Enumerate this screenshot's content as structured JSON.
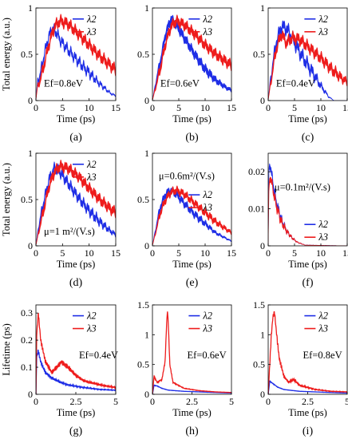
{
  "figure": {
    "row_ylabels": [
      "Total energy (a.u.)",
      "Total energy (a.u.)",
      "Lifetime (ps)"
    ],
    "colors": {
      "lambda2": "#1f2ee6",
      "lambda3": "#ee1c1c"
    }
  },
  "chart_data": [
    {
      "panel": "(a)",
      "type": "line",
      "xlabel": "Time (ps)",
      "annotation": "Ef=0.8eV",
      "xlim": [
        0,
        15
      ],
      "ylim": [
        0,
        1
      ],
      "xticks": [
        0,
        5,
        10,
        15
      ],
      "yticks": [
        0,
        0.5,
        1
      ],
      "xtick_labels": [
        "0",
        "5",
        "10",
        "15"
      ],
      "ytick_labels": [
        "0",
        "0.5",
        "1"
      ],
      "legend": "top-right",
      "grid": false,
      "series": [
        {
          "name": "λ2",
          "band": 0.05,
          "ripple": 0.035,
          "ripple_period": 0.8,
          "x": [
            0,
            0.3,
            0.8,
            1.5,
            2.2,
            3,
            3.8,
            4.6,
            6,
            8,
            10,
            12,
            14,
            15
          ],
          "y": [
            0,
            0.2,
            0.28,
            0.48,
            0.65,
            0.78,
            0.74,
            0.65,
            0.55,
            0.42,
            0.3,
            0.18,
            0.08,
            0.05
          ]
        },
        {
          "name": "λ3",
          "band": 0.07,
          "ripple": 0.03,
          "ripple_period": 0.9,
          "x": [
            0,
            0.3,
            0.8,
            1.5,
            2.5,
            3.5,
            4.5,
            6,
            8,
            10,
            12,
            14,
            15
          ],
          "y": [
            0,
            0.15,
            0.22,
            0.38,
            0.62,
            0.8,
            0.86,
            0.83,
            0.72,
            0.6,
            0.48,
            0.38,
            0.33
          ]
        }
      ]
    },
    {
      "panel": "(b)",
      "type": "line",
      "xlabel": "Time (ps)",
      "annotation": "Ef=0.6eV",
      "xlim": [
        0,
        15
      ],
      "ylim": [
        0,
        1
      ],
      "xticks": [
        0,
        5,
        10,
        15
      ],
      "yticks": [
        0,
        0.5,
        1
      ],
      "xtick_labels": [
        "0",
        "5",
        "10",
        "15"
      ],
      "ytick_labels": [
        "0",
        "0.5",
        "1"
      ],
      "legend": "top-right",
      "grid": false,
      "series": [
        {
          "name": "λ2",
          "band": 0.07,
          "ripple": 0.02,
          "ripple_period": 0.9,
          "x": [
            0,
            0.5,
            1.5,
            2.5,
            3.5,
            4.5,
            6,
            8,
            10,
            12,
            14,
            15
          ],
          "y": [
            0,
            0.15,
            0.42,
            0.72,
            0.88,
            0.82,
            0.68,
            0.5,
            0.34,
            0.22,
            0.14,
            0.11
          ]
        },
        {
          "name": "λ3",
          "band": 0.07,
          "ripple": 0.025,
          "ripple_period": 0.9,
          "x": [
            0,
            0.5,
            1.5,
            2.5,
            3.5,
            4.5,
            6,
            8,
            10,
            12,
            14,
            15
          ],
          "y": [
            0,
            0.12,
            0.35,
            0.62,
            0.8,
            0.86,
            0.82,
            0.72,
            0.6,
            0.5,
            0.42,
            0.38
          ]
        }
      ]
    },
    {
      "panel": "(c)",
      "type": "line",
      "xlabel": "Time (ps)",
      "annotation": "Ef=0.4eV",
      "xlim": [
        0,
        15
      ],
      "ylim": [
        0,
        1
      ],
      "xticks": [
        0,
        5,
        10,
        15
      ],
      "yticks": [
        0,
        0.5,
        1
      ],
      "xtick_labels": [
        "0",
        "5",
        "10",
        "15"
      ],
      "ytick_labels": [
        "0",
        "0.5",
        "1"
      ],
      "legend": "top-right",
      "grid": false,
      "series": [
        {
          "name": "λ2",
          "band": 0.07,
          "ripple": 0.04,
          "ripple_period": 0.9,
          "x": [
            0,
            0.5,
            1.5,
            2.5,
            3.5,
            4.5,
            6,
            8,
            10,
            11.5,
            12.5
          ],
          "y": [
            0,
            0.25,
            0.62,
            0.8,
            0.78,
            0.68,
            0.52,
            0.34,
            0.16,
            0.04,
            0
          ]
        },
        {
          "name": "λ3",
          "band": 0.07,
          "ripple": 0.03,
          "ripple_period": 0.9,
          "x": [
            0,
            0.5,
            1.5,
            2.5,
            3.5,
            4.5,
            6,
            8,
            10,
            12,
            14,
            15
          ],
          "y": [
            0,
            0.2,
            0.55,
            0.72,
            0.62,
            0.68,
            0.66,
            0.56,
            0.46,
            0.34,
            0.24,
            0.2
          ]
        }
      ]
    },
    {
      "panel": "(d)",
      "type": "line",
      "xlabel": "Time (ps)",
      "annotation": "μ=1 m²/(V.s)",
      "xlim": [
        0,
        15
      ],
      "ylim": [
        0,
        1
      ],
      "xticks": [
        0,
        5,
        10,
        15
      ],
      "yticks": [
        0,
        0.5,
        1
      ],
      "xtick_labels": [
        "0",
        "5",
        "10",
        "15"
      ],
      "ytick_labels": [
        "0",
        "0.5",
        "1"
      ],
      "legend": "top-right",
      "grid": false,
      "series": [
        {
          "name": "λ2",
          "band": 0.06,
          "ripple": 0.03,
          "ripple_period": 0.8,
          "x": [
            0,
            0.5,
            1.5,
            2.5,
            3.5,
            4.5,
            6,
            8,
            10,
            12,
            14,
            15
          ],
          "y": [
            0,
            0.2,
            0.48,
            0.72,
            0.84,
            0.8,
            0.68,
            0.52,
            0.38,
            0.26,
            0.16,
            0.12
          ]
        },
        {
          "name": "λ3",
          "band": 0.07,
          "ripple": 0.025,
          "ripple_period": 0.9,
          "x": [
            0,
            0.5,
            1.5,
            2.5,
            3.5,
            4.5,
            6,
            8,
            10,
            12,
            14,
            15
          ],
          "y": [
            0,
            0.15,
            0.4,
            0.65,
            0.8,
            0.86,
            0.84,
            0.75,
            0.62,
            0.5,
            0.4,
            0.36
          ]
        }
      ]
    },
    {
      "panel": "(e)",
      "type": "line",
      "xlabel": "Time (ps)",
      "annotation": "μ=0.6m²/(V.s)",
      "xlim": [
        0,
        15
      ],
      "ylim": [
        0,
        1
      ],
      "xticks": [
        0,
        5,
        10,
        15
      ],
      "yticks": [
        0,
        0.5,
        1
      ],
      "xtick_labels": [
        "0",
        "5",
        "10",
        "15"
      ],
      "ytick_labels": [
        "0",
        "0.5",
        "1"
      ],
      "legend": "center-right",
      "grid": false,
      "series": [
        {
          "name": "λ2",
          "band": 0.05,
          "ripple": 0.02,
          "ripple_period": 0.9,
          "x": [
            0,
            0.5,
            1.5,
            2.5,
            3.5,
            4.5,
            6,
            8,
            10,
            12,
            14,
            15
          ],
          "y": [
            0,
            0.15,
            0.42,
            0.56,
            0.6,
            0.56,
            0.46,
            0.34,
            0.24,
            0.14,
            0.08,
            0.05
          ]
        },
        {
          "name": "λ3",
          "band": 0.05,
          "ripple": 0.02,
          "ripple_period": 0.9,
          "x": [
            0,
            0.5,
            1.5,
            2.5,
            3.5,
            4.5,
            6,
            8,
            10,
            12,
            14,
            15
          ],
          "y": [
            0,
            0.12,
            0.36,
            0.5,
            0.58,
            0.6,
            0.56,
            0.46,
            0.36,
            0.26,
            0.18,
            0.14
          ]
        }
      ]
    },
    {
      "panel": "(f)",
      "type": "line",
      "xlabel": "Time (ps)",
      "annotation": "μ=0.1m²/(V.s)",
      "xlim": [
        0,
        15
      ],
      "ylim": [
        0,
        0.025
      ],
      "xticks": [
        0,
        5,
        10,
        15
      ],
      "yticks": [
        0,
        0.01,
        0.02
      ],
      "xtick_labels": [
        "0",
        "5",
        "10",
        "15"
      ],
      "ytick_labels": [
        "0",
        "0.01",
        "0.02"
      ],
      "legend": "bottom-right",
      "grid": false,
      "series": [
        {
          "name": "λ2",
          "band": 0.0012,
          "ripple": 0.0008,
          "ripple_period": 0.6,
          "x": [
            0,
            0.15,
            0.4,
            0.8,
            1.5,
            2.5,
            3.5,
            4.5,
            5.5,
            7,
            15
          ],
          "y": [
            0,
            0.02,
            0.022,
            0.018,
            0.012,
            0.007,
            0.004,
            0.0022,
            0.001,
            0.0002,
            0
          ]
        },
        {
          "name": "λ3",
          "band": 0.0012,
          "ripple": 0.0008,
          "ripple_period": 0.6,
          "x": [
            0,
            0.15,
            0.4,
            0.8,
            1.5,
            2.5,
            3.5,
            4.5,
            5.5,
            7,
            15
          ],
          "y": [
            0,
            0.015,
            0.019,
            0.016,
            0.011,
            0.0065,
            0.004,
            0.0022,
            0.001,
            0.0002,
            0
          ]
        }
      ]
    },
    {
      "panel": "(g)",
      "type": "line",
      "xlabel": "Time (ps)",
      "annotation": "Ef=0.4eV",
      "xlim": [
        0,
        5
      ],
      "ylim": [
        0,
        0.33
      ],
      "xticks": [
        0,
        2.5,
        5
      ],
      "yticks": [
        0,
        0.1,
        0.2,
        0.3
      ],
      "xtick_labels": [
        "0",
        "2.5",
        "5"
      ],
      "ytick_labels": [
        "0",
        "0.1",
        "0.2",
        "0.3"
      ],
      "legend": "top-right",
      "grid": false,
      "series": [
        {
          "name": "λ2",
          "band": 0,
          "ripple": 0.006,
          "ripple_period": 0.06,
          "x": [
            0,
            0.05,
            0.15,
            0.3,
            0.6,
            1,
            1.5,
            2,
            3,
            4,
            5
          ],
          "y": [
            0,
            0.14,
            0.16,
            0.12,
            0.08,
            0.06,
            0.045,
            0.035,
            0.025,
            0.018,
            0.015
          ]
        },
        {
          "name": "λ3",
          "band": 0,
          "ripple": 0.007,
          "ripple_period": 0.06,
          "x": [
            0,
            0.05,
            0.15,
            0.3,
            0.6,
            1,
            1.3,
            1.6,
            2,
            2.5,
            3,
            4,
            5
          ],
          "y": [
            0,
            0.22,
            0.3,
            0.2,
            0.12,
            0.08,
            0.1,
            0.12,
            0.1,
            0.07,
            0.05,
            0.035,
            0.025
          ]
        }
      ]
    },
    {
      "panel": "(h)",
      "type": "line",
      "xlabel": "Time (ps)",
      "annotation": "Ef=0.6eV",
      "xlim": [
        0,
        5
      ],
      "ylim": [
        0,
        1.5
      ],
      "xticks": [
        0,
        2.5,
        5
      ],
      "yticks": [
        0,
        0.5,
        1,
        1.5
      ],
      "xtick_labels": [
        "0",
        "2.5",
        "5"
      ],
      "ytick_labels": [
        "0",
        "0.5",
        "1",
        "1.5"
      ],
      "legend": "top-right",
      "grid": false,
      "series": [
        {
          "name": "λ2",
          "band": 0,
          "ripple": 0.01,
          "ripple_period": 0.06,
          "x": [
            0,
            0.1,
            0.3,
            0.6,
            1,
            2,
            3,
            4,
            5
          ],
          "y": [
            0,
            0.15,
            0.14,
            0.1,
            0.07,
            0.05,
            0.04,
            0.03,
            0.02
          ]
        },
        {
          "name": "λ3",
          "band": 0,
          "ripple": 0.015,
          "ripple_period": 0.06,
          "x": [
            0,
            0.1,
            0.3,
            0.6,
            0.8,
            0.9,
            0.95,
            1.0,
            1.1,
            1.3,
            2,
            3,
            4,
            5
          ],
          "y": [
            0,
            0.3,
            0.2,
            0.25,
            0.55,
            1.2,
            1.4,
            1.2,
            0.5,
            0.2,
            0.1,
            0.06,
            0.04,
            0.03
          ]
        }
      ]
    },
    {
      "panel": "(i)",
      "type": "line",
      "xlabel": "Time (ps)",
      "annotation": "Ef=0.8eV",
      "xlim": [
        0,
        5
      ],
      "ylim": [
        0,
        1.5
      ],
      "xticks": [
        0,
        2.5,
        5
      ],
      "yticks": [
        0,
        0.5,
        1,
        1.5
      ],
      "xtick_labels": [
        "0",
        "2.5",
        "5"
      ],
      "ytick_labels": [
        "0",
        "0.5",
        "1",
        "1.5"
      ],
      "legend": "top-right",
      "grid": false,
      "series": [
        {
          "name": "λ2",
          "band": 0,
          "ripple": 0.01,
          "ripple_period": 0.06,
          "x": [
            0,
            0.1,
            0.3,
            0.6,
            1,
            2,
            3,
            4,
            5
          ],
          "y": [
            0,
            0.22,
            0.18,
            0.12,
            0.08,
            0.05,
            0.04,
            0.03,
            0.02
          ]
        },
        {
          "name": "λ3",
          "band": 0,
          "ripple": 0.03,
          "ripple_period": 0.06,
          "x": [
            0,
            0.1,
            0.2,
            0.3,
            0.4,
            0.5,
            0.7,
            1,
            1.3,
            1.6,
            2,
            3,
            4,
            5
          ],
          "y": [
            0,
            0.5,
            1.0,
            1.3,
            1.38,
            1.1,
            0.6,
            0.3,
            0.2,
            0.25,
            0.15,
            0.08,
            0.05,
            0.04
          ]
        }
      ]
    }
  ]
}
